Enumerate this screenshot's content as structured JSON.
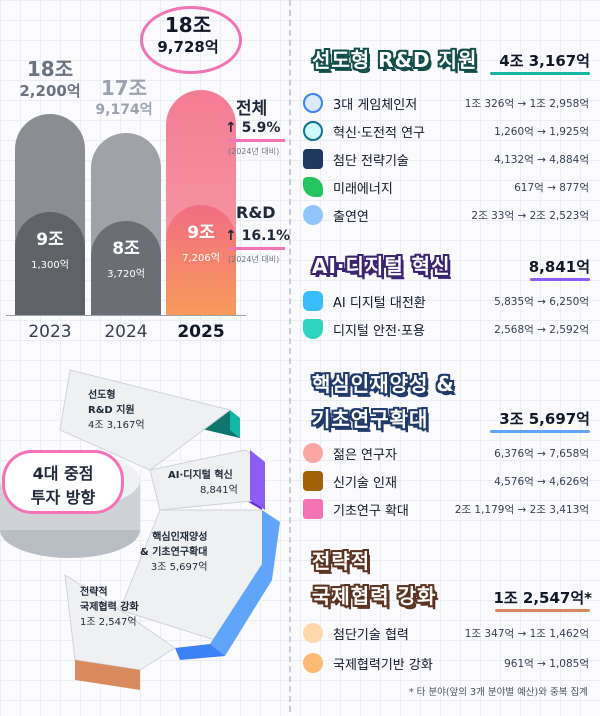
{
  "chart_data": {
    "type": "bar",
    "categories": [
      "2023",
      "2024",
      "2025"
    ],
    "series": [
      {
        "values_label": [
          "18조 2,200억",
          "17조 9,174억",
          "18조 9,728억"
        ],
        "values": [
          182200,
          179174,
          189728
        ],
        "unit": "억원"
      },
      {
        "values_label": [
          "9조 1,300억",
          "8조 3,720억",
          "9조 7,206억"
        ],
        "values": [
          91300,
          83720,
          97206
        ],
        "unit": "억원"
      }
    ]
  },
  "bars": [
    {
      "year": "2023",
      "total_main": "18조",
      "total_sub": "2,200억",
      "rd_main": "9조",
      "rd_sub": "1,300억"
    },
    {
      "year": "2024",
      "total_main": "17조",
      "total_sub": "9,174억",
      "rd_main": "8조",
      "rd_sub": "3,720억"
    },
    {
      "year": "2025",
      "total_main": "18조",
      "total_sub": "9,728억",
      "rd_main": "9조",
      "rd_sub": "7,206억"
    }
  ],
  "growth": {
    "total_label": "전체",
    "total_pct": "5.9%",
    "total_note": "(2024년 대비)",
    "rd_label": "R&D",
    "rd_pct": "16.1%",
    "rd_note": "(2024년 대비)",
    "arrow": "↑"
  },
  "pie": {
    "center_line1": "4대 중점",
    "center_line2": "투자 방향",
    "s1_l1": "선도형",
    "s1_l2": "R&D 지원",
    "s1_v": "4조 3,167억",
    "s2_l1": "AI·디지털 혁신",
    "s2_v": "8,841억",
    "s3_l1": "핵심인재양성",
    "s3_l2": "& 기초연구확대",
    "s3_v": "3조 5,697억",
    "s4_l1": "전략적",
    "s4_l2": "국제협력 강화",
    "s4_v": "1조 2,547억"
  },
  "sections": [
    {
      "title": "선도형 R&D 지원",
      "total": "4조 3,167억",
      "items": [
        {
          "name": "3대 게임체인저",
          "value": "1조 326억 → 1조 2,958억"
        },
        {
          "name": "혁신·도전적 연구",
          "value": "1,260억 → 1,925억"
        },
        {
          "name": "첨단 전략기술",
          "value": "4,132억 → 4,884억"
        },
        {
          "name": "미래에너지",
          "value": "617억 → 877억"
        },
        {
          "name": "출연연",
          "value": "2조 33억 → 2조 2,523억"
        }
      ]
    },
    {
      "title": "AI·디지털 혁신",
      "total": "8,841억",
      "items": [
        {
          "name": "AI 디지털 대전환",
          "value": "5,835억 → 6,250억"
        },
        {
          "name": "디지털 안전·포용",
          "value": "2,568억 → 2,592억"
        }
      ]
    },
    {
      "title1": "핵심인재양성 &",
      "title2": "기초연구확대",
      "total": "3조 5,697억",
      "items": [
        {
          "name": "젊은 연구자",
          "value": "6,376억 → 7,658억"
        },
        {
          "name": "신기술 인재",
          "value": "4,576억 → 4,626억"
        },
        {
          "name": "기초연구 확대",
          "value": "2조 1,179억 → 2조 3,413억"
        }
      ]
    },
    {
      "title1": "전략적",
      "title2": "국제협력 강화",
      "total": "1조 2,547억*",
      "items": [
        {
          "name": "첨단기술 협력",
          "value": "1조 347억 → 1조 1,462억"
        },
        {
          "name": "국제협력기반 강화",
          "value": "961억 → 1,085억"
        }
      ]
    }
  ],
  "footnote": "* 타 분야(앞의 3개 분야별 예산)와 중복 집계",
  "colors": {
    "bar_2023": "#8a8d92",
    "bar_2024": "#9fa2a7",
    "bar_2025": "#f4879a",
    "teal": "#14b8a6",
    "purple": "#8b5cf6",
    "blue": "#60a5fa",
    "brown": "#d98b5f"
  }
}
